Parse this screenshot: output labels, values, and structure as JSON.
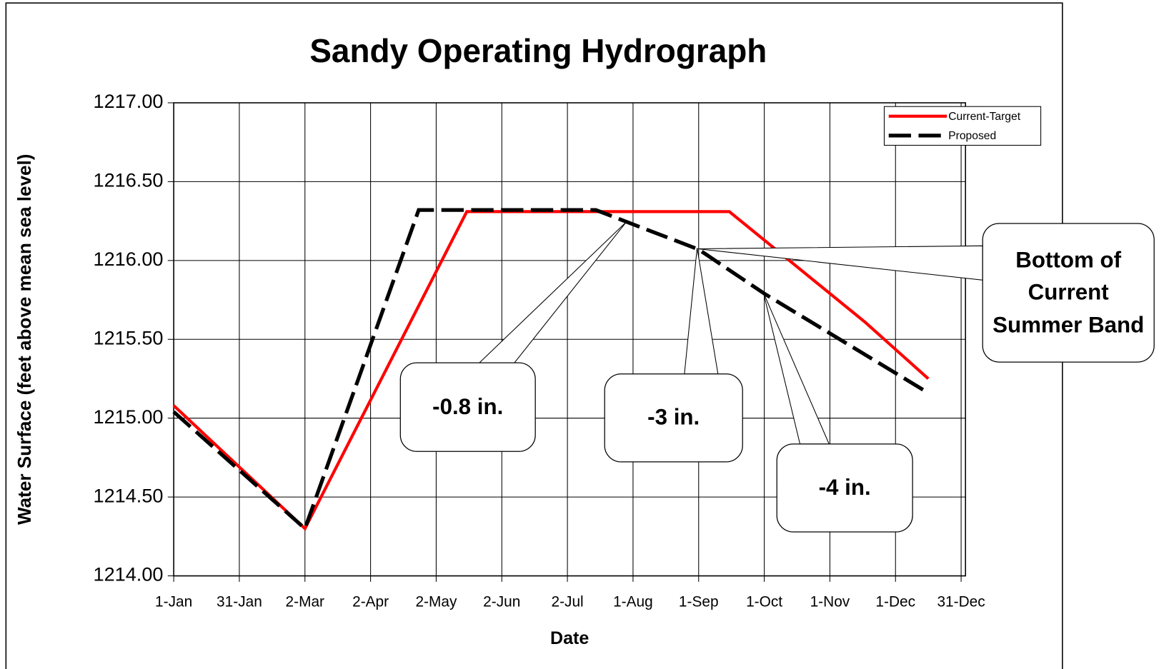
{
  "chart_data": {
    "type": "line",
    "title": "Sandy Operating Hydrograph",
    "x_label": "Date",
    "y_label": "Water Surface (feet above mean sea level)",
    "xlim": [
      0,
      362
    ],
    "ylim": [
      1214,
      1217
    ],
    "xticks": [
      {
        "value": 0,
        "label": "1-Jan"
      },
      {
        "value": 30,
        "label": "31-Jan"
      },
      {
        "value": 60,
        "label": "2-Mar"
      },
      {
        "value": 90,
        "label": "2-Apr"
      },
      {
        "value": 120,
        "label": "2-May"
      },
      {
        "value": 150,
        "label": "2-Jun"
      },
      {
        "value": 180,
        "label": "2-Jul"
      },
      {
        "value": 210,
        "label": "1-Aug"
      },
      {
        "value": 240,
        "label": "1-Sep"
      },
      {
        "value": 270,
        "label": "1-Oct"
      },
      {
        "value": 300,
        "label": "1-Nov"
      },
      {
        "value": 330,
        "label": "1-Dec"
      },
      {
        "value": 360,
        "label": "31-Dec"
      }
    ],
    "yticks": [
      {
        "value": 1214,
        "label": "1214.00"
      },
      {
        "value": 1214.5,
        "label": "1214.50"
      },
      {
        "value": 1215,
        "label": "1215.00"
      },
      {
        "value": 1215.5,
        "label": "1215.50"
      },
      {
        "value": 1216,
        "label": "1216.00"
      },
      {
        "value": 1216.5,
        "label": "1216.50"
      },
      {
        "value": 1217,
        "label": "1217.00"
      }
    ],
    "grid": true,
    "legend": "upper right",
    "series": [
      {
        "name": "Current-Target",
        "color": "#ff0000",
        "dash": "solid",
        "x": [
          0,
          60,
          134,
          254,
          316,
          345
        ],
        "values": [
          1215.08,
          1214.3,
          1216.31,
          1216.31,
          1215.61,
          1215.25
        ]
      },
      {
        "name": "Proposed",
        "color": "#000000",
        "dash": "dashed",
        "x": [
          0,
          60,
          112,
          193,
          208,
          240,
          270,
          345
        ],
        "values": [
          1215.04,
          1214.3,
          1216.32,
          1216.32,
          1216.24,
          1216.07,
          1215.79,
          1215.16
        ]
      }
    ],
    "annotations": [
      "-0.8 in.",
      "-3 in.",
      "-4 in.",
      "Bottom of Current Summer Band"
    ]
  }
}
